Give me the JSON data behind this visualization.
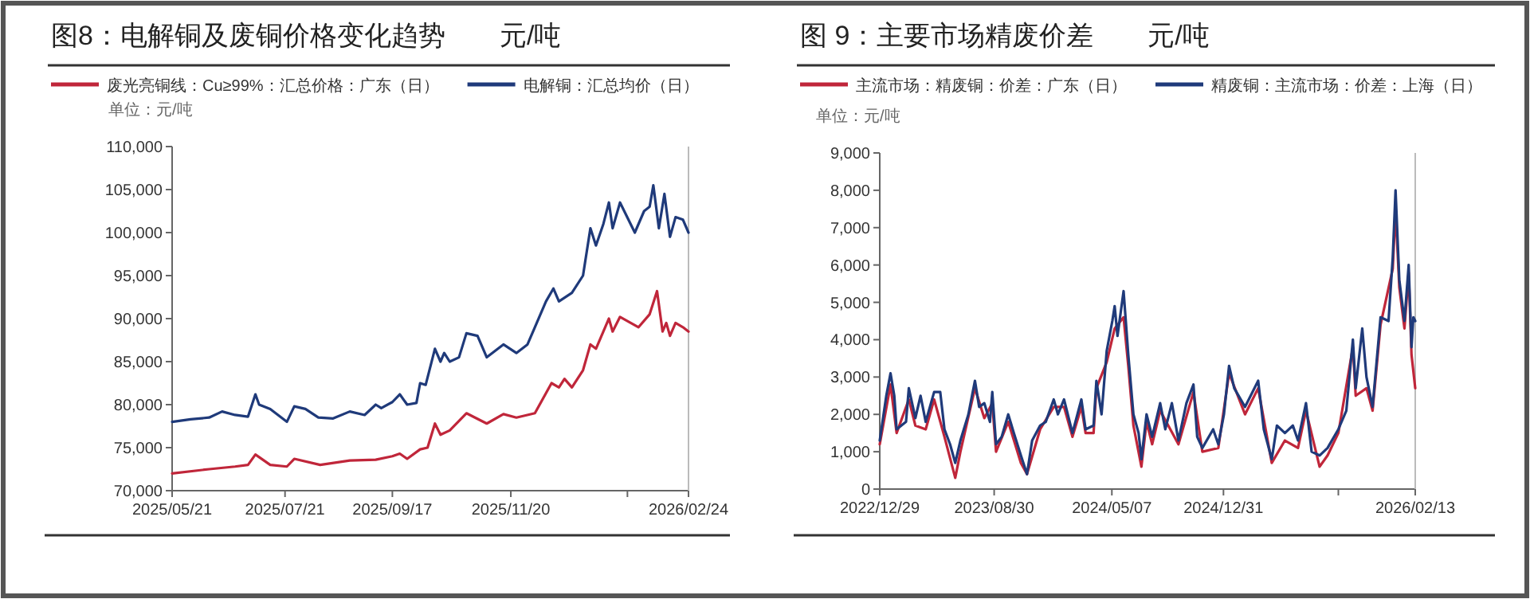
{
  "chart_data": [
    {
      "type": "line",
      "title": "图8：电解铜及废铜价格变化趋势　　元/吨",
      "ylabel": "单位：元/吨",
      "legend": "top",
      "xlim": [
        "2025-05-21",
        "2026-02-24"
      ],
      "xticks": [
        {
          "value": "2025-05-21",
          "label": "2025/05/21"
        },
        {
          "value": "2025-07-21",
          "label": "2025/07/21"
        },
        {
          "value": "2025-09-17",
          "label": "2025/09/17"
        },
        {
          "value": "2025-11-20",
          "label": "2025/11/20"
        },
        {
          "value": "2026-01-22",
          "label": null
        },
        {
          "value": "2026-02-24",
          "label": "2026/02/24"
        }
      ],
      "ylim": [
        70000,
        110000
      ],
      "yticks": [
        {
          "value": 70000,
          "label": "70,000"
        },
        {
          "value": 75000,
          "label": "75,000"
        },
        {
          "value": 80000,
          "label": "80,000"
        },
        {
          "value": 85000,
          "label": "85,000"
        },
        {
          "value": 90000,
          "label": "90,000"
        },
        {
          "value": 95000,
          "label": "95,000"
        },
        {
          "value": 100000,
          "label": "100,000"
        },
        {
          "value": 105000,
          "label": "105,000"
        },
        {
          "value": 110000,
          "label": "110,000"
        }
      ],
      "series": [
        {
          "name": "废光亮铜线：Cu≥99%：汇总价格：广东（日）",
          "color": "#c0263a",
          "x": [
            "2025-05-21",
            "2025-06-10",
            "2025-06-24",
            "2025-07-01",
            "2025-07-05",
            "2025-07-13",
            "2025-07-22",
            "2025-07-26",
            "2025-08-09",
            "2025-08-25",
            "2025-09-08",
            "2025-09-17",
            "2025-09-21",
            "2025-09-25",
            "2025-10-02",
            "2025-10-06",
            "2025-10-10",
            "2025-10-13",
            "2025-10-18",
            "2025-10-27",
            "2025-11-07",
            "2025-11-16",
            "2025-11-23",
            "2025-12-03",
            "2025-12-12",
            "2025-12-16",
            "2025-12-19",
            "2025-12-23",
            "2025-12-29",
            "2026-01-02",
            "2026-01-05",
            "2026-01-12",
            "2026-01-14",
            "2026-01-18",
            "2026-01-28",
            "2026-02-03",
            "2026-02-07",
            "2026-02-10",
            "2026-02-12",
            "2026-02-14",
            "2026-02-17",
            "2026-02-21",
            "2026-02-24"
          ],
          "values": [
            72000,
            72500,
            72800,
            73000,
            74200,
            73000,
            72800,
            73700,
            73000,
            73500,
            73600,
            74000,
            74300,
            73700,
            74800,
            75000,
            77800,
            76500,
            77000,
            79000,
            77800,
            78900,
            78500,
            79000,
            82500,
            82000,
            83000,
            82000,
            84000,
            87000,
            86500,
            90000,
            88500,
            90200,
            89000,
            90500,
            93200,
            88500,
            89500,
            88000,
            89500,
            89000,
            88500
          ]
        },
        {
          "name": "电解铜：汇总均价（日）",
          "color": "#1f3a7a",
          "x": [
            "2025-05-21",
            "2025-05-31",
            "2025-06-10",
            "2025-06-17",
            "2025-06-24",
            "2025-07-01",
            "2025-07-05",
            "2025-07-07",
            "2025-07-13",
            "2025-07-22",
            "2025-07-26",
            "2025-08-01",
            "2025-08-08",
            "2025-08-16",
            "2025-08-25",
            "2025-09-02",
            "2025-09-08",
            "2025-09-11",
            "2025-09-17",
            "2025-09-21",
            "2025-09-25",
            "2025-09-30",
            "2025-10-02",
            "2025-10-05",
            "2025-10-10",
            "2025-10-13",
            "2025-10-15",
            "2025-10-18",
            "2025-10-23",
            "2025-10-27",
            "2025-11-02",
            "2025-11-07",
            "2025-11-16",
            "2025-11-23",
            "2025-11-29",
            "2025-12-03",
            "2025-12-09",
            "2025-12-13",
            "2025-12-16",
            "2025-12-23",
            "2025-12-29",
            "2026-01-02",
            "2026-01-05",
            "2026-01-09",
            "2026-01-12",
            "2026-01-14",
            "2026-01-18",
            "2026-01-26",
            "2026-01-31",
            "2026-02-03",
            "2026-02-05",
            "2026-02-08",
            "2026-02-11",
            "2026-02-14",
            "2026-02-17",
            "2026-02-21",
            "2026-02-24"
          ],
          "values": [
            78000,
            78300,
            78500,
            79200,
            78800,
            78600,
            81200,
            80000,
            79500,
            78000,
            79800,
            79500,
            78500,
            78400,
            79200,
            78800,
            80000,
            79600,
            80300,
            81200,
            80000,
            80200,
            82500,
            82300,
            86500,
            85000,
            86000,
            85000,
            85500,
            88300,
            88000,
            85500,
            87000,
            86000,
            87000,
            89000,
            92000,
            93500,
            92000,
            93000,
            95000,
            100500,
            98500,
            101000,
            103500,
            100500,
            103500,
            100000,
            102500,
            103000,
            105500,
            100500,
            104500,
            99500,
            101800,
            101500,
            100000
          ]
        }
      ]
    },
    {
      "type": "line",
      "title": "图 9：主要市场精废价差　　元/吨",
      "ylabel": "单位：元/吨",
      "legend": "top",
      "xlim": [
        "2022-12-29",
        "2026-02-13"
      ],
      "xticks": [
        {
          "value": "2022-12-29",
          "label": "2022/12/29"
        },
        {
          "value": "2023-08-30",
          "label": "2023/08/30"
        },
        {
          "value": "2024-05-07",
          "label": "2024/05/07"
        },
        {
          "value": "2024-12-31",
          "label": "2024/12/31"
        },
        {
          "value": "2025-09-02",
          "label": null
        },
        {
          "value": "2026-02-13",
          "label": "2026/02/13"
        }
      ],
      "ylim": [
        0,
        9000
      ],
      "yticks": [
        0,
        {
          "value": 1000,
          "label": "1,000"
        },
        {
          "value": 2000,
          "label": "2,000"
        },
        {
          "value": 3000,
          "label": "3,000"
        },
        {
          "value": 4000,
          "label": "4,000"
        },
        {
          "value": 5000,
          "label": "5,000"
        },
        {
          "value": 6000,
          "label": "6,000"
        },
        {
          "value": 7000,
          "label": "7,000"
        },
        {
          "value": 8000,
          "label": "8,000"
        },
        {
          "value": 9000,
          "label": "9,000"
        }
      ],
      "series": [
        {
          "name": "主流市场：精废铜：价差：广东（日）",
          "color": "#c0263a",
          "x": [
            "2022-12-29",
            "2023-01-21",
            "2023-02-03",
            "2023-03-01",
            "2023-03-15",
            "2023-04-06",
            "2023-04-24",
            "2023-05-16",
            "2023-06-08",
            "2023-06-19",
            "2023-07-20",
            "2023-08-09",
            "2023-08-26",
            "2023-09-03",
            "2023-09-29",
            "2023-10-26",
            "2023-11-08",
            "2023-12-06",
            "2024-01-04",
            "2024-01-26",
            "2024-02-13",
            "2024-03-03",
            "2024-03-12",
            "2024-03-29",
            "2024-04-04",
            "2024-04-26",
            "2024-05-13",
            "2024-06-01",
            "2024-06-11",
            "2024-06-22",
            "2024-07-09",
            "2024-07-20",
            "2024-08-01",
            "2024-08-18",
            "2024-09-26",
            "2024-10-28",
            "2024-11-16",
            "2024-12-20",
            "2025-01-12",
            "2025-02-15",
            "2025-03-15",
            "2025-04-13",
            "2025-05-11",
            "2025-06-08",
            "2025-06-25",
            "2025-07-24",
            "2025-08-10",
            "2025-09-02",
            "2025-10-03",
            "2025-10-09",
            "2025-11-01",
            "2025-11-14",
            "2025-12-01",
            "2025-12-27",
            "2026-01-02",
            "2026-01-10",
            "2026-01-21",
            "2026-01-30",
            "2026-02-05",
            "2026-02-13"
          ],
          "values": [
            1200,
            2800,
            1500,
            2400,
            1700,
            1600,
            2400,
            1400,
            300,
            1000,
            2700,
            1900,
            2300,
            1000,
            1800,
            700,
            400,
            1600,
            2200,
            2200,
            1400,
            2200,
            1500,
            1500,
            2700,
            3400,
            4300,
            4600,
            3300,
            1700,
            600,
            1800,
            1200,
            2100,
            1200,
            2600,
            1000,
            1100,
            3100,
            2000,
            2700,
            700,
            1300,
            1100,
            2100,
            600,
            900,
            1500,
            3800,
            2500,
            2700,
            2100,
            4400,
            5900,
            7500,
            5400,
            4300,
            5800,
            3600,
            2700
          ]
        },
        {
          "name": "精废铜：主流市场：价差：上海（日）",
          "color": "#1f3a7a",
          "x": [
            "2022-12-29",
            "2023-01-12",
            "2023-01-21",
            "2023-01-29",
            "2023-02-03",
            "2023-02-23",
            "2023-03-01",
            "2023-03-15",
            "2023-03-26",
            "2023-04-06",
            "2023-04-24",
            "2023-05-07",
            "2023-05-16",
            "2023-05-28",
            "2023-06-08",
            "2023-06-19",
            "2023-07-06",
            "2023-07-20",
            "2023-07-29",
            "2023-08-09",
            "2023-08-21",
            "2023-08-26",
            "2023-09-03",
            "2023-09-15",
            "2023-09-29",
            "2023-10-11",
            "2023-10-26",
            "2023-11-08",
            "2023-11-19",
            "2023-12-06",
            "2023-12-18",
            "2024-01-04",
            "2024-01-13",
            "2024-01-26",
            "2024-02-13",
            "2024-03-03",
            "2024-03-12",
            "2024-03-29",
            "2024-04-04",
            "2024-04-15",
            "2024-04-26",
            "2024-05-08",
            "2024-05-13",
            "2024-05-19",
            "2024-06-01",
            "2024-06-11",
            "2024-06-22",
            "2024-07-03",
            "2024-07-09",
            "2024-07-20",
            "2024-08-01",
            "2024-08-18",
            "2024-08-29",
            "2024-09-12",
            "2024-09-26",
            "2024-10-13",
            "2024-10-28",
            "2024-11-05",
            "2024-11-16",
            "2024-12-09",
            "2024-12-20",
            "2025-01-01",
            "2025-01-12",
            "2025-01-23",
            "2025-02-15",
            "2025-03-15",
            "2025-03-27",
            "2025-04-13",
            "2025-04-24",
            "2025-05-11",
            "2025-05-28",
            "2025-06-08",
            "2025-06-25",
            "2025-07-07",
            "2025-07-24",
            "2025-08-10",
            "2025-09-02",
            "2025-09-19",
            "2025-10-03",
            "2025-10-09",
            "2025-10-23",
            "2025-11-01",
            "2025-11-14",
            "2025-12-01",
            "2025-12-18",
            "2025-12-27",
            "2026-01-02",
            "2026-01-10",
            "2026-01-21",
            "2026-01-30",
            "2026-02-05",
            "2026-02-09",
            "2026-02-13"
          ],
          "values": [
            1300,
            2500,
            3100,
            2500,
            1600,
            1800,
            2700,
            1900,
            2500,
            1800,
            2600,
            2600,
            1600,
            1200,
            700,
            1300,
            2000,
            2900,
            2200,
            2300,
            1800,
            2600,
            1200,
            1400,
            2000,
            1500,
            900,
            400,
            1300,
            1700,
            1800,
            2400,
            2000,
            2400,
            1500,
            2400,
            1600,
            1700,
            2900,
            2000,
            3700,
            4500,
            4900,
            4100,
            5300,
            3600,
            2000,
            1500,
            800,
            2000,
            1400,
            2300,
            1600,
            2300,
            1300,
            2300,
            2800,
            1400,
            1100,
            1600,
            1200,
            2000,
            3300,
            2700,
            2200,
            2900,
            1600,
            800,
            1700,
            1500,
            1700,
            1300,
            2300,
            1000,
            900,
            1100,
            1600,
            2100,
            4000,
            2700,
            4300,
            3000,
            2200,
            4600,
            4500,
            6200,
            8000,
            5600,
            4500,
            6000,
            3800,
            4600,
            4500
          ]
        }
      ]
    }
  ]
}
